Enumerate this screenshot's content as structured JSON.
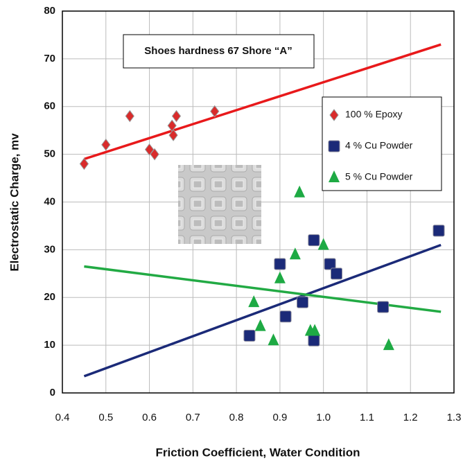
{
  "chart_data": {
    "type": "scatter",
    "xlabel": "Friction Coefficient, Water  Condition",
    "ylabel": "Electrostatic Charge, mv",
    "annotation": "Shoes hardness 67 Shore “A”",
    "xlim": [
      0.4,
      1.3
    ],
    "xticks": [
      0.4,
      0.5,
      0.6,
      0.7,
      0.8,
      0.9,
      {
        "value": 1,
        "label": "1.0"
      },
      1.1,
      1.2,
      1.3
    ],
    "ylim": [
      0,
      80
    ],
    "yticks": [
      0,
      10,
      20,
      30,
      40,
      50,
      60,
      70,
      80
    ],
    "grid": true,
    "legend": "upper right",
    "series": [
      {
        "name": "100 % Epoxy",
        "color": "#d92b2b",
        "marker": "diamond",
        "x": [
          0.45,
          0.5,
          0.555,
          0.6,
          0.612,
          0.652,
          0.655,
          0.662,
          0.75
        ],
        "values": [
          48,
          52,
          58,
          51,
          50,
          56,
          54,
          58,
          59
        ],
        "trendline": {
          "color": "#e8191b",
          "x": [
            0.45,
            1.27
          ],
          "y": [
            49,
            73
          ]
        }
      },
      {
        "name": "4 % Cu Powder",
        "color": "#1b2a78",
        "marker": "square",
        "x": [
          0.83,
          0.9,
          0.913,
          0.952,
          0.978,
          0.978,
          1.015,
          1.03,
          1.137,
          1.265
        ],
        "values": [
          12,
          27,
          16,
          19,
          32,
          11,
          27,
          25,
          18,
          34
        ],
        "trendline": {
          "color": "#1b2a78",
          "x": [
            0.45,
            1.27
          ],
          "y": [
            3.5,
            31
          ]
        }
      },
      {
        "name": "5 % Cu Powder",
        "color": "#1eaa44",
        "marker": "triangle",
        "x": [
          0.84,
          0.855,
          0.885,
          0.9,
          0.935,
          0.945,
          0.97,
          0.98,
          1.0,
          1.15
        ],
        "values": [
          19,
          14,
          11,
          24,
          29,
          42,
          13,
          13,
          31,
          10
        ],
        "trendline": {
          "color": "#22aa44",
          "x": [
            0.45,
            1.27
          ],
          "y": [
            26.5,
            17
          ]
        }
      }
    ]
  }
}
